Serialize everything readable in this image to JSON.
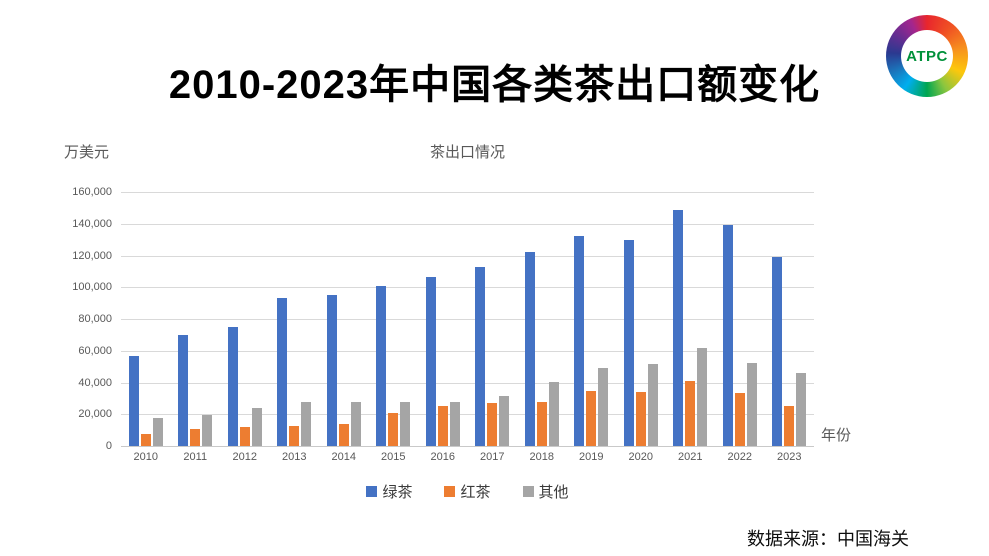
{
  "page": {
    "title": "2010-2023年中国各类茶出口额变化",
    "source_note": "数据来源：中国海关",
    "logo": {
      "text": "ATPC"
    }
  },
  "chart_data": {
    "type": "bar",
    "title": "茶出口情况",
    "ylabel": "万美元",
    "xlabel": "年份",
    "ylim": [
      0,
      160000
    ],
    "ytick_interval": 20000,
    "grid": true,
    "legend_position": "bottom",
    "categories": [
      "2010",
      "2011",
      "2012",
      "2013",
      "2014",
      "2015",
      "2016",
      "2017",
      "2018",
      "2019",
      "2020",
      "2021",
      "2022",
      "2023"
    ],
    "series": [
      {
        "name": "绿茶",
        "key": "green-tea",
        "color": "#4472C4",
        "values": [
          56500,
          70000,
          75000,
          93000,
          95000,
          100500,
          106500,
          113000,
          122000,
          132500,
          130000,
          148500,
          139000,
          119000
        ]
      },
      {
        "name": "红茶",
        "key": "black-tea",
        "color": "#ED7D31",
        "values": [
          7500,
          10500,
          12000,
          12500,
          14000,
          20500,
          25000,
          27000,
          27500,
          34500,
          34000,
          41000,
          33500,
          25000
        ]
      },
      {
        "name": "其他",
        "key": "other",
        "color": "#A5A5A5",
        "values": [
          17500,
          19500,
          24000,
          27500,
          28000,
          27500,
          27500,
          31500,
          40000,
          49000,
          51500,
          62000,
          52500,
          46000
        ]
      }
    ]
  },
  "colors": {
    "green_tea_blue": "#4472C4",
    "black_tea_orange": "#ED7D31",
    "other_gray": "#A5A5A5",
    "gridline": "#D9D9D9",
    "axis_text": "#595959",
    "logo_green": "#00913A"
  }
}
